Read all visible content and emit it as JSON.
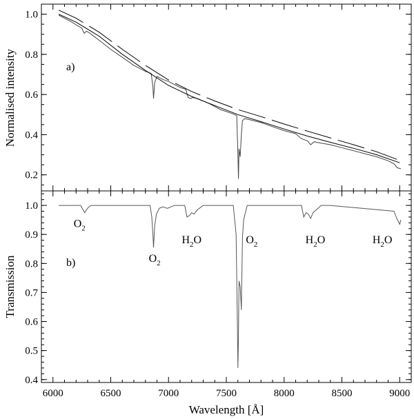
{
  "chart_data": [
    {
      "type": "line",
      "panel_label": "a)",
      "xlim": [
        5900,
        9100
      ],
      "ylim": [
        0.12,
        1.05
      ],
      "xticks": [
        6000,
        6500,
        7000,
        7500,
        8000,
        8500,
        9000
      ],
      "yticks": [
        0.2,
        0.4,
        0.6,
        0.8,
        1.0
      ],
      "ytick_labels": [
        "0.2",
        "0.4",
        "0.6",
        "0.8",
        "1.0"
      ],
      "ylabel": "Normalised intensity",
      "series": [
        {
          "style": "observed-spectrum",
          "x": [
            6050,
            6150,
            6250,
            6270,
            6290,
            6320,
            6400,
            6500,
            6600,
            6700,
            6800,
            6850,
            6865,
            6870,
            6880,
            6900,
            6950,
            7000,
            7100,
            7150,
            7170,
            7190,
            7210,
            7250,
            7350,
            7450,
            7550,
            7590,
            7600,
            7605,
            7610,
            7620,
            7630,
            7640,
            7660,
            7700,
            7800,
            7900,
            8000,
            8100,
            8150,
            8200,
            8230,
            8260,
            8300,
            8400,
            8500,
            8600,
            8700,
            8800,
            8900,
            8950,
            8980,
            9010
          ],
          "y": [
            0.995,
            0.965,
            0.93,
            0.905,
            0.915,
            0.905,
            0.87,
            0.825,
            0.785,
            0.745,
            0.715,
            0.705,
            0.64,
            0.58,
            0.66,
            0.69,
            0.675,
            0.665,
            0.635,
            0.625,
            0.585,
            0.58,
            0.585,
            0.58,
            0.555,
            0.525,
            0.505,
            0.495,
            0.3,
            0.18,
            0.33,
            0.29,
            0.4,
            0.47,
            0.48,
            0.475,
            0.46,
            0.44,
            0.42,
            0.405,
            0.38,
            0.37,
            0.35,
            0.365,
            0.36,
            0.35,
            0.335,
            0.32,
            0.305,
            0.29,
            0.27,
            0.255,
            0.235,
            0.23
          ]
        },
        {
          "style": "continuum-solid",
          "x": [
            6050,
            6200,
            6400,
            6600,
            6800,
            7000,
            7200,
            7400,
            7600,
            7800,
            8000,
            8200,
            8400,
            8600,
            8800,
            9000
          ],
          "y": [
            1.0,
            0.96,
            0.89,
            0.8,
            0.72,
            0.645,
            0.59,
            0.545,
            0.5,
            0.465,
            0.428,
            0.393,
            0.362,
            0.332,
            0.3,
            0.26
          ]
        },
        {
          "style": "upper-envelope-dashed",
          "x": [
            6050,
            6200,
            6400,
            6600,
            6800,
            7000,
            7200,
            7400,
            7600,
            7800,
            8000,
            8200,
            8400,
            8600,
            8800,
            9000
          ],
          "y": [
            1.02,
            0.98,
            0.91,
            0.825,
            0.745,
            0.672,
            0.615,
            0.568,
            0.525,
            0.49,
            0.453,
            0.418,
            0.384,
            0.35,
            0.315,
            0.272
          ]
        }
      ]
    },
    {
      "type": "line",
      "panel_label": "b)",
      "xlim": [
        5900,
        9100
      ],
      "ylim": [
        0.39,
        1.05
      ],
      "xticks": [
        6000,
        6500,
        7000,
        7500,
        8000,
        8500,
        9000
      ],
      "xtick_labels": [
        "6000",
        "6500",
        "7000",
        "7500",
        "8000",
        "8500",
        "9000"
      ],
      "yticks": [
        0.4,
        0.5,
        0.6,
        0.7,
        0.8,
        0.9,
        1.0
      ],
      "ytick_labels": [
        "0.4",
        "0.5",
        "0.6",
        "0.7",
        "0.8",
        "0.9",
        "1.0"
      ],
      "xlabel": "Wavelength [Å]",
      "ylabel": "Transmission",
      "series": [
        {
          "style": "transmission",
          "x": [
            6050,
            6240,
            6260,
            6275,
            6290,
            6310,
            6330,
            6840,
            6855,
            6865,
            6870,
            6880,
            6895,
            6920,
            6950,
            6990,
            7050,
            7140,
            7160,
            7180,
            7200,
            7220,
            7250,
            7300,
            7560,
            7585,
            7595,
            7600,
            7605,
            7610,
            7620,
            7630,
            7640,
            7650,
            7680,
            8150,
            8170,
            8190,
            8210,
            8230,
            8250,
            8280,
            8320,
            8400,
            8950,
            8975,
            9000,
            9010
          ],
          "y": [
            1.0,
            1.0,
            0.985,
            0.975,
            0.985,
            0.995,
            1.0,
            1.0,
            0.96,
            0.9,
            0.855,
            0.93,
            0.97,
            0.99,
            0.995,
            0.99,
            1.0,
            1.0,
            0.96,
            0.965,
            0.975,
            0.97,
            0.985,
            1.0,
            1.0,
            0.9,
            0.62,
            0.44,
            0.55,
            0.74,
            0.72,
            0.64,
            0.89,
            0.95,
            1.0,
            1.0,
            0.96,
            0.975,
            0.97,
            0.955,
            0.975,
            0.985,
            1.0,
            1.0,
            0.98,
            0.955,
            0.935,
            0.95
          ]
        }
      ],
      "annotations": [
        {
          "base": "O",
          "sub": "2",
          "x": 6230,
          "y": 0.925
        },
        {
          "base": "O",
          "sub": "2",
          "x": 6880,
          "y": 0.805
        },
        {
          "base": "H",
          "sub": "2",
          "tail": "O",
          "x": 7200,
          "y": 0.87
        },
        {
          "base": "O",
          "sub": "2",
          "x": 7720,
          "y": 0.87
        },
        {
          "base": "H",
          "sub": "2",
          "tail": "O",
          "x": 8270,
          "y": 0.87
        },
        {
          "base": "H",
          "sub": "2",
          "tail": "O",
          "x": 8850,
          "y": 0.87
        }
      ]
    }
  ]
}
